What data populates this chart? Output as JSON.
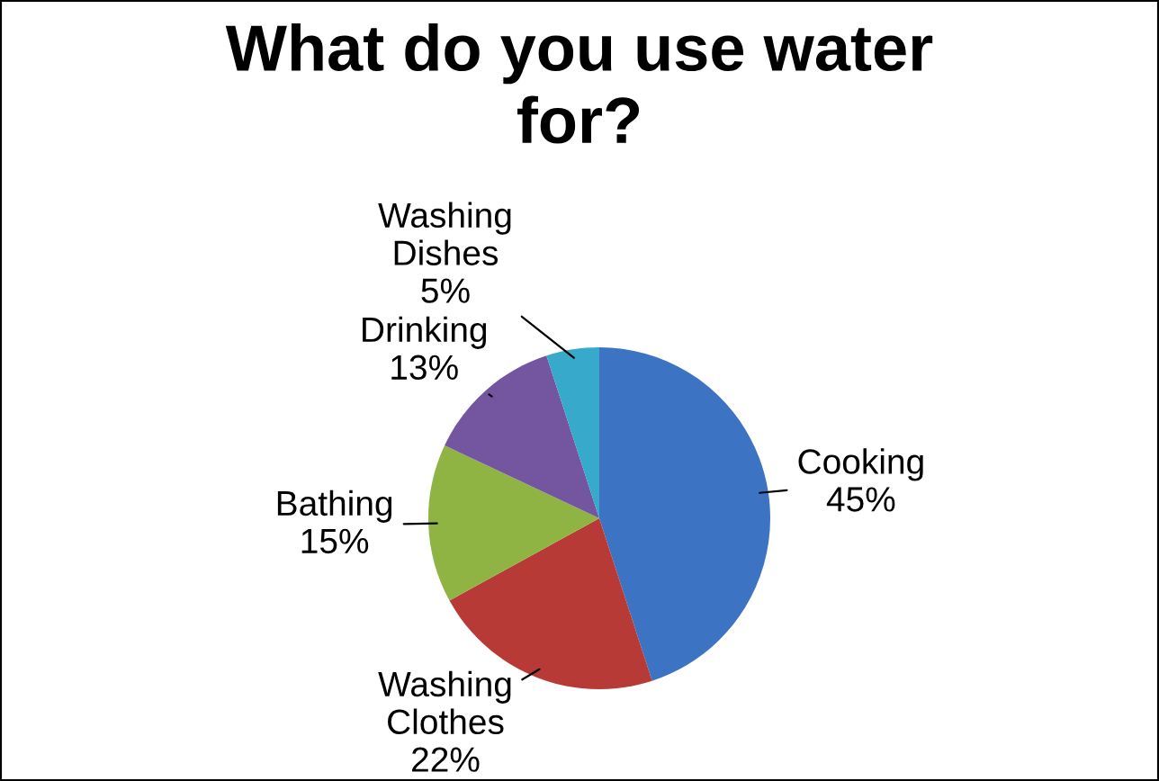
{
  "chart_data": {
    "type": "pie",
    "title": "What do you use water for?",
    "categories": [
      "Cooking",
      "Washing Clothes",
      "Bathing",
      "Drinking",
      "Washing Dishes"
    ],
    "values": [
      45,
      22,
      15,
      13,
      5
    ],
    "value_labels": [
      "45%",
      "22%",
      "15%",
      "13%",
      "5%"
    ],
    "colors": [
      "#3d73c3",
      "#b83a37",
      "#8fb443",
      "#7455a0",
      "#37aacb"
    ],
    "legend": false
  }
}
